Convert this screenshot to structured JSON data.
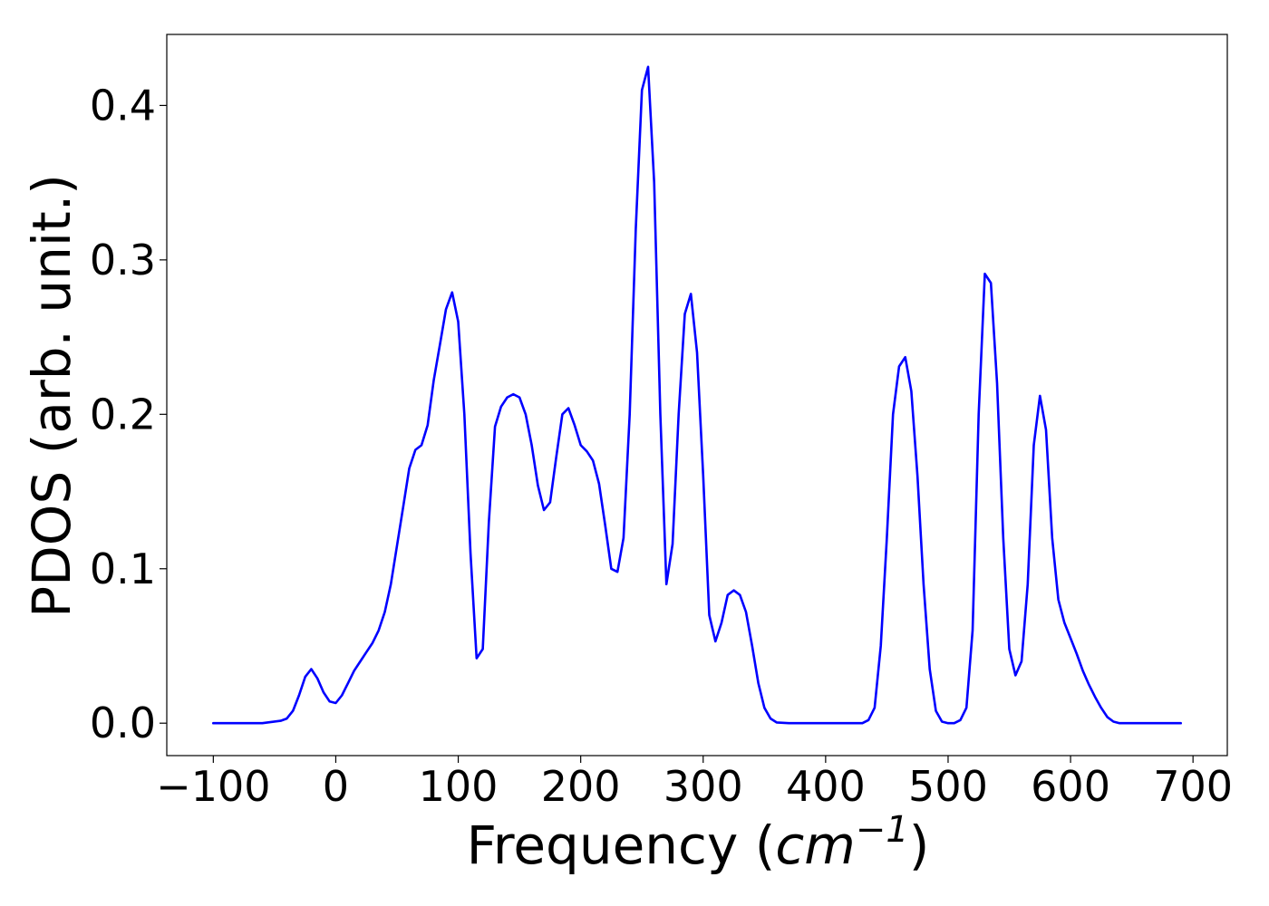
{
  "chart_data": {
    "type": "line",
    "title": "",
    "xlabel": "Frequency",
    "xlabel_unit_open": "(",
    "xlabel_unit_base": "cm",
    "xlabel_unit_exp": "−1",
    "xlabel_unit_close": ")",
    "ylabel": "PDOS (arb. unit.)",
    "xlim": [
      -138,
      728
    ],
    "ylim": [
      -0.021,
      0.446
    ],
    "xticks": [
      -100,
      0,
      100,
      200,
      300,
      400,
      500,
      600,
      700
    ],
    "xtick_labels": [
      "−100",
      "0",
      "100",
      "200",
      "300",
      "400",
      "500",
      "600",
      "700"
    ],
    "yticks": [
      0.0,
      0.1,
      0.2,
      0.3,
      0.4
    ],
    "ytick_labels": [
      "0.0",
      "0.1",
      "0.2",
      "0.3",
      "0.4"
    ],
    "grid": false,
    "series": [
      {
        "color": "#0000ff",
        "x": [
          -100,
          -60,
          -45,
          -40,
          -35,
          -30,
          -25,
          -20,
          -15,
          -10,
          -5,
          0,
          5,
          10,
          15,
          20,
          25,
          30,
          35,
          40,
          45,
          50,
          55,
          60,
          65,
          70,
          75,
          80,
          85,
          90,
          95,
          100,
          105,
          110,
          115,
          120,
          125,
          130,
          135,
          140,
          145,
          150,
          155,
          160,
          165,
          170,
          175,
          180,
          185,
          190,
          195,
          200,
          205,
          210,
          215,
          220,
          225,
          230,
          235,
          240,
          245,
          250,
          255,
          260,
          265,
          270,
          275,
          280,
          285,
          290,
          295,
          300,
          305,
          310,
          315,
          320,
          325,
          330,
          335,
          340,
          345,
          350,
          355,
          360,
          370,
          430,
          435,
          440,
          445,
          450,
          455,
          460,
          465,
          470,
          475,
          480,
          485,
          490,
          495,
          500,
          505,
          510,
          515,
          520,
          525,
          530,
          535,
          540,
          545,
          550,
          555,
          560,
          565,
          570,
          575,
          580,
          585,
          590,
          595,
          600,
          605,
          610,
          615,
          620,
          625,
          630,
          635,
          640,
          690
        ],
        "y": [
          0.0,
          0.0,
          0.0015,
          0.003,
          0.008,
          0.018,
          0.03,
          0.035,
          0.029,
          0.02,
          0.014,
          0.013,
          0.018,
          0.026,
          0.034,
          0.04,
          0.046,
          0.052,
          0.06,
          0.072,
          0.09,
          0.115,
          0.14,
          0.165,
          0.177,
          0.18,
          0.193,
          0.222,
          0.245,
          0.268,
          0.279,
          0.26,
          0.2,
          0.11,
          0.042,
          0.048,
          0.13,
          0.192,
          0.205,
          0.211,
          0.213,
          0.211,
          0.2,
          0.18,
          0.154,
          0.138,
          0.143,
          0.172,
          0.2,
          0.204,
          0.193,
          0.18,
          0.176,
          0.17,
          0.155,
          0.128,
          0.1,
          0.098,
          0.12,
          0.2,
          0.32,
          0.41,
          0.425,
          0.35,
          0.2,
          0.09,
          0.116,
          0.2,
          0.265,
          0.278,
          0.24,
          0.16,
          0.07,
          0.053,
          0.065,
          0.083,
          0.086,
          0.083,
          0.072,
          0.05,
          0.026,
          0.01,
          0.003,
          0.0005,
          0.0,
          0.0,
          0.002,
          0.01,
          0.05,
          0.12,
          0.2,
          0.231,
          0.237,
          0.215,
          0.16,
          0.09,
          0.035,
          0.008,
          0.001,
          0.0,
          0.0,
          0.002,
          0.01,
          0.06,
          0.2,
          0.291,
          0.285,
          0.22,
          0.12,
          0.048,
          0.031,
          0.04,
          0.09,
          0.18,
          0.212,
          0.19,
          0.12,
          0.08,
          0.065,
          0.055,
          0.045,
          0.034,
          0.025,
          0.017,
          0.01,
          0.004,
          0.001,
          0.0,
          0.0
        ]
      }
    ]
  }
}
